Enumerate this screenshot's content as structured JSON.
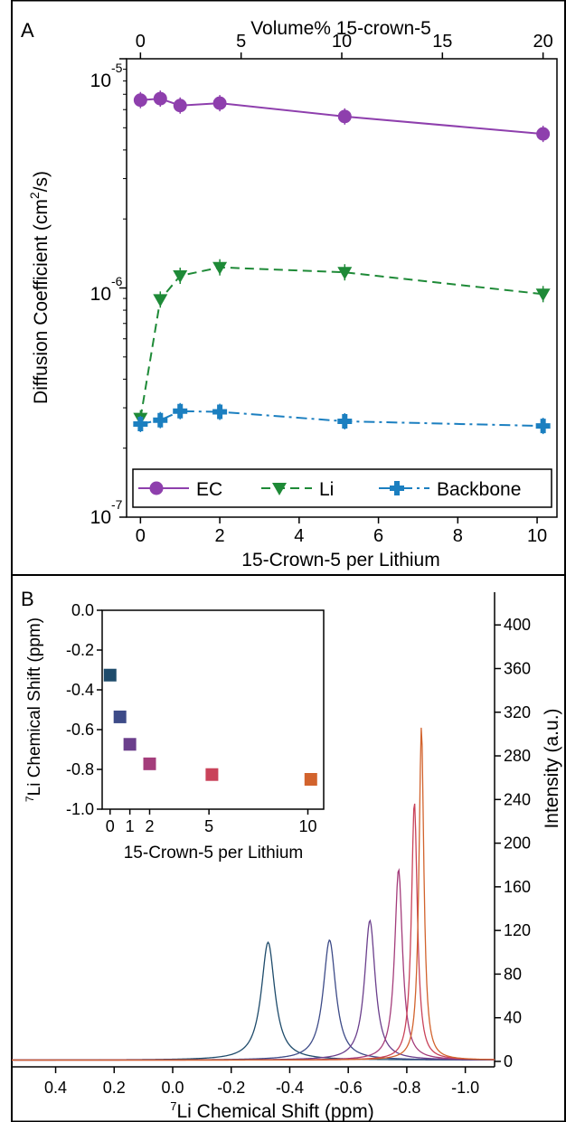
{
  "panel_a": {
    "letter": "A",
    "top_axis_label": "Volume% 15-crown-5",
    "top_ticks": [
      "0",
      "5",
      "10",
      "15",
      "20"
    ],
    "y_label_main": "Diffusion Coefficient (cm",
    "y_label_sup": "2",
    "y_label_tail": "/s)",
    "y_tick_base": "10",
    "y_tick_exps": [
      "-5",
      "-6",
      "-7"
    ],
    "x_label": "15-Crown-5 per Lithium",
    "x_ticks": [
      "0",
      "2",
      "4",
      "6",
      "8",
      "10"
    ]
  },
  "panel_b": {
    "letter": "B",
    "x_label_sup": "7",
    "x_label": "Li Chemical Shift (ppm)",
    "x_ticks": [
      "0.4",
      "0.2",
      "0.0",
      "-0.2",
      "-0.4",
      "-0.6",
      "-0.8",
      "-1.0"
    ],
    "y_label": "Intensity (a.u.)",
    "y_ticks": [
      "0",
      "40",
      "80",
      "120",
      "160",
      "200",
      "240",
      "280",
      "320",
      "360",
      "400"
    ],
    "inset": {
      "y_label_sup": "7",
      "y_label": "Li Chemical Shift (ppm)",
      "y_ticks": [
        "0.0",
        "-0.2",
        "-0.4",
        "-0.6",
        "-0.8",
        "-1.0"
      ],
      "x_label": "15-Crown-5 per Lithium",
      "x_ticks": [
        "0",
        "1",
        "2",
        "5",
        "10"
      ]
    }
  },
  "chart_data": [
    {
      "type": "line",
      "panel": "A",
      "xlabel": "15-Crown-5 per Lithium",
      "x2label": "Volume% 15-crown-5",
      "ylabel": "Diffusion Coefficient (cm^2/s)",
      "yscale": "log",
      "xlim": [
        -0.35,
        10.5
      ],
      "ylim": [
        1e-07,
        1e-05
      ],
      "legend_position": "bottom",
      "series": [
        {
          "name": "EC",
          "color": "#8e3fad",
          "marker": "circle",
          "dash": "solid",
          "x": [
            0,
            0.5,
            1.0,
            2.0,
            5.15,
            10.15
          ],
          "y": [
            6.6e-06,
            6.7e-06,
            6.25e-06,
            6.4e-06,
            5.6e-06,
            4.7e-06
          ]
        },
        {
          "name": "Li",
          "color": "#1e8a37",
          "marker": "triangle-down",
          "dash": "dashed",
          "x": [
            0,
            0.5,
            1.0,
            2.0,
            5.15,
            10.15
          ],
          "y": [
            2.7e-07,
            8.9e-07,
            1.13e-06,
            1.23e-06,
            1.17e-06,
            9.4e-07
          ]
        },
        {
          "name": "Backbone",
          "color": "#1b7fc0",
          "marker": "plus",
          "dash": "dashdot",
          "x": [
            0,
            0.5,
            1.0,
            2.0,
            5.15,
            10.15
          ],
          "y": [
            2.55e-07,
            2.65e-07,
            2.9e-07,
            2.88e-07,
            2.62e-07,
            2.5e-07
          ]
        }
      ]
    },
    {
      "type": "line",
      "panel": "B",
      "xlabel": "7Li Chemical Shift (ppm)",
      "ylabel": "Intensity (a.u.)",
      "xlim": [
        0.55,
        -1.1
      ],
      "ylim": [
        -5,
        430
      ],
      "series": [
        {
          "center": -0.326,
          "height": 108,
          "width": 0.028,
          "color": "#1e4b6b"
        },
        {
          "center": -0.536,
          "height": 110,
          "width": 0.026,
          "color": "#3d4b88"
        },
        {
          "center": -0.674,
          "height": 128,
          "width": 0.022,
          "color": "#6b3f8c"
        },
        {
          "center": -0.772,
          "height": 175,
          "width": 0.016,
          "color": "#a43d7b"
        },
        {
          "center": -0.826,
          "height": 237,
          "width": 0.012,
          "color": "#c9435a"
        },
        {
          "center": -0.85,
          "height": 306,
          "width": 0.01,
          "color": "#d2632d"
        }
      ]
    },
    {
      "type": "scatter",
      "panel": "B-inset",
      "xlabel": "15-Crown-5 per Lithium",
      "ylabel": "7Li Chemical Shift (ppm)",
      "xlim": [
        -0.4,
        10.8
      ],
      "ylim": [
        -1.0,
        0.0
      ],
      "x": [
        0,
        0.5,
        1.0,
        2.0,
        5.15,
        10.15
      ],
      "y": [
        -0.326,
        -0.536,
        -0.674,
        -0.772,
        -0.826,
        -0.85
      ],
      "colors": [
        "#1e4b6b",
        "#3d4b88",
        "#6b3f8c",
        "#a43d7b",
        "#c9435a",
        "#d2632d"
      ]
    }
  ]
}
